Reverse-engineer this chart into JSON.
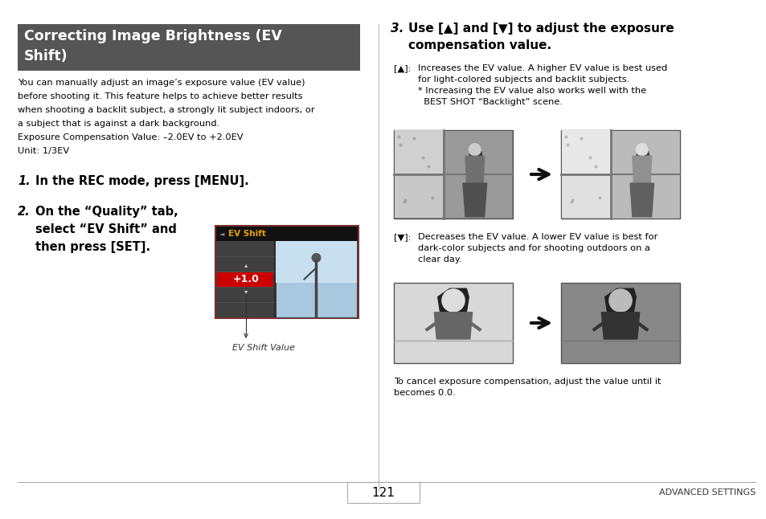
{
  "bg_color": "#ffffff",
  "page_width": 9.54,
  "page_height": 6.46,
  "dpi": 100,
  "header_bg": "#555555",
  "header_text_color": "#ffffff",
  "header_font_size": 12.5,
  "left_body_lines": [
    "You can manually adjust an image’s exposure value (EV value)",
    "before shooting it. This feature helps to achieve better results",
    "when shooting a backlit subject, a strongly lit subject indoors, or",
    "a subject that is against a dark background.",
    "Exposure Compensation Value: –2.0EV to +2.0EV",
    "Unit: 1/3EV"
  ],
  "step1_num": "1.",
  "step1_text": "In the REC mode, press [MENU].",
  "step2_num": "2.",
  "step2_text": "On the “Quality” tab,\nselect “EV Shift” and\nthen press [SET].",
  "ev_caption": "EV Shift Value",
  "step3_num": "3.",
  "step3_text": "Use [▲] and [▼] to adjust the exposure\ncompensation value.",
  "up_label": "[▲]:",
  "up_text": "Increases the EV value. A higher EV value is best used\nfor light-colored subjects and backlit subjects.\n* Increasing the EV value also works well with the\n  BEST SHOT “Backlight” scene.",
  "down_label": "[▼]:",
  "down_text": "Decreases the EV value. A lower EV value is best for\ndark-color subjects and for shooting outdoors on a\nclear day.",
  "cancel_text": "To cancel exposure compensation, adjust the value until it\nbecomes 0.0.",
  "footer_text": "ADVANCED SETTINGS",
  "page_number": "121",
  "body_font_size": 8.2,
  "step_font_size": 10.5,
  "caption_font_size": 8,
  "footer_font_size": 8
}
